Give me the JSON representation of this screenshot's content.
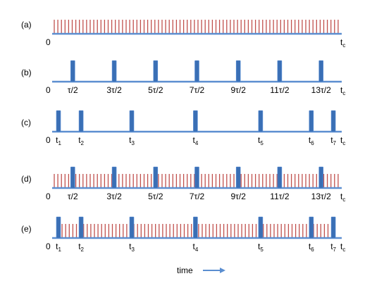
{
  "rows": [
    {
      "label": "(a)",
      "red_fill": "full",
      "blue_pulses": [],
      "ticks": [
        {
          "text": "0"
        },
        {
          "text": "t",
          "sub": "c"
        }
      ]
    },
    {
      "label": "(b)",
      "red_fill": "none",
      "blue_pulses": [
        0.0714,
        0.2143,
        0.3571,
        0.5,
        0.6429,
        0.7857,
        0.9286
      ],
      "ticks": [
        {
          "text": "0"
        },
        {
          "text": "τ/2"
        },
        {
          "text": "3τ/2"
        },
        {
          "text": "5τ/2"
        },
        {
          "text": "7τ/2"
        },
        {
          "text": "9τ/2"
        },
        {
          "text": "11τ/2"
        },
        {
          "text": "13τ/2"
        },
        {
          "text": "t",
          "sub": "c"
        }
      ]
    },
    {
      "label": "(c)",
      "red_fill": "none",
      "blue_pulses": [
        0.022,
        0.1,
        0.275,
        0.495,
        0.72,
        0.895,
        0.971
      ],
      "ticks": [
        {
          "text": "0"
        },
        {
          "text": "t",
          "sub": "1"
        },
        {
          "text": "t",
          "sub": "2"
        },
        {
          "text": "t",
          "sub": "3"
        },
        {
          "text": "t",
          "sub": "4"
        },
        {
          "text": "t",
          "sub": "5"
        },
        {
          "text": "t",
          "sub": "6"
        },
        {
          "text": "t",
          "sub": "7"
        },
        {
          "text": "t",
          "sub": "c"
        }
      ]
    },
    {
      "label": "(d)",
      "red_fill": "full",
      "blue_pulses": [
        0.0714,
        0.2143,
        0.3571,
        0.5,
        0.6429,
        0.7857,
        0.9286
      ],
      "ticks": [
        {
          "text": "0"
        },
        {
          "text": "τ/2"
        },
        {
          "text": "3τ/2"
        },
        {
          "text": "5τ/2"
        },
        {
          "text": "7τ/2"
        },
        {
          "text": "9τ/2"
        },
        {
          "text": "11τ/2"
        },
        {
          "text": "13τ/2"
        },
        {
          "text": "t",
          "sub": "c"
        }
      ]
    },
    {
      "label": "(e)",
      "red_fill": "between-first-and-last",
      "blue_pulses": [
        0.022,
        0.1,
        0.275,
        0.495,
        0.72,
        0.895,
        0.971
      ],
      "ticks": [
        {
          "text": "0"
        },
        {
          "text": "t",
          "sub": "1"
        },
        {
          "text": "t",
          "sub": "2"
        },
        {
          "text": "t",
          "sub": "3"
        },
        {
          "text": "t",
          "sub": "4"
        },
        {
          "text": "t",
          "sub": "5"
        },
        {
          "text": "t",
          "sub": "6"
        },
        {
          "text": "t",
          "sub": "7"
        },
        {
          "text": "t",
          "sub": "c"
        }
      ]
    }
  ],
  "time_label": "time",
  "colors": {
    "axis": "#5b8ed0",
    "red_line": "#c0504d",
    "pulse": "#3a6fb5",
    "pulse_light": "#5a8fd6"
  }
}
